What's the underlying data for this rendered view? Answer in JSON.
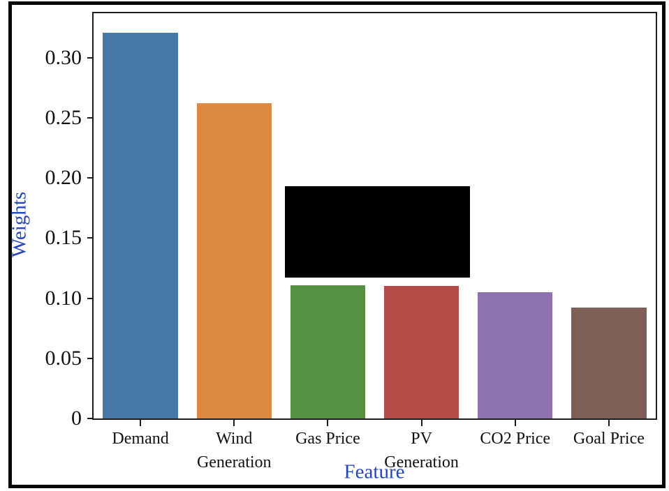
{
  "figure": {
    "ylabel": "Weights",
    "xlabel": "Feature",
    "axis_label_color": "#2547b4",
    "tick_label_color": "#111111",
    "spine_color": "#1c1c1c",
    "frame_color": "#060606",
    "background_color": "#ffffff"
  },
  "chart_data": {
    "type": "bar",
    "title": "",
    "xlabel": "Feature",
    "ylabel": "Weights",
    "categories": [
      "Demand",
      "Wind Generation",
      "Gas Price",
      "PV Generation",
      "CO2 Price",
      "Goal Price"
    ],
    "category_label_lines": [
      [
        "Demand"
      ],
      [
        "Wind",
        "Generation"
      ],
      [
        "Gas Price"
      ],
      [
        "PV",
        "Generation"
      ],
      [
        "CO2 Price"
      ],
      [
        "Goal Price"
      ]
    ],
    "values": [
      0.321,
      0.262,
      0.111,
      0.11,
      0.105,
      0.092
    ],
    "bar_colors": [
      "#4878a8",
      "#dc8a42",
      "#569142",
      "#b34b47",
      "#8e73b0",
      "#7f6057"
    ],
    "ylim": [
      0,
      0.337
    ],
    "yticks": {
      "values": [
        0,
        0.05,
        0.1,
        0.15,
        0.2,
        0.25,
        0.3
      ],
      "labels": [
        "0",
        "0.05",
        "0.10",
        "0.15",
        "0.20",
        "0.25",
        "0.30"
      ]
    },
    "grid": false,
    "legend": null,
    "bar_width_fraction": 0.8,
    "annotations": [
      {
        "type": "redaction-box",
        "color": "#000000",
        "x_slots": [
          2.042,
          4.017
        ],
        "y_values": [
          0.117,
          0.193
        ]
      }
    ]
  }
}
